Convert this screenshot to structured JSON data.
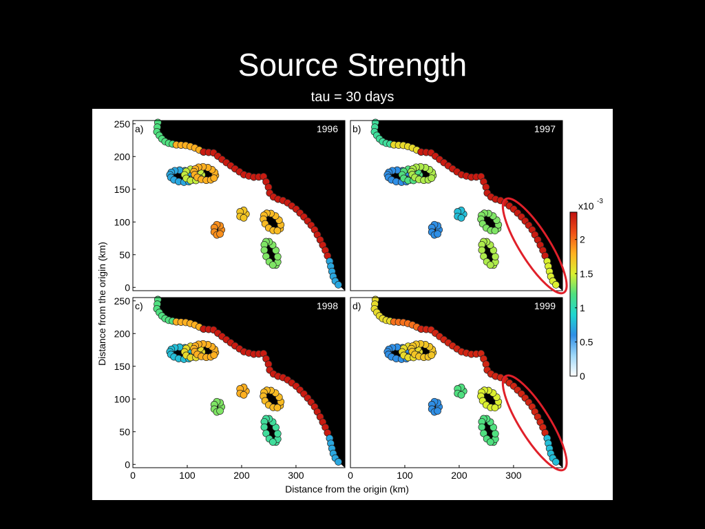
{
  "slide": {
    "title": "Source Strength",
    "subtitle": "tau = 30 days"
  },
  "chart_data": {
    "type": "scatter",
    "xlabel": "Distance from the origin (km)",
    "ylabel": "Distance from the origin (km)",
    "xlim": [
      0,
      390
    ],
    "ylim": [
      -5,
      255
    ],
    "xticks": [
      0,
      100,
      200,
      300
    ],
    "yticks": [
      0,
      50,
      100,
      150,
      200,
      250
    ],
    "colorbar": {
      "multiplier": "x10",
      "exponent": "-3",
      "range": [
        0,
        2.4
      ],
      "ticks": [
        0,
        0.5,
        1,
        1.5,
        2
      ],
      "tick_labels": [
        "0",
        "0.5",
        "1",
        "1.5",
        "2"
      ],
      "colormap": "jet",
      "colors": [
        "#ffffff",
        "#9fd8f8",
        "#2f8fe6",
        "#1fd6d0",
        "#50e080",
        "#dcf030",
        "#ffb020",
        "#f05018",
        "#c01010"
      ]
    },
    "panels": [
      {
        "label": "a)",
        "year": "1996",
        "values": {
          "coast_a": 1.2,
          "coast_b": 1.8,
          "coast_c": 2.35,
          "coast_d": 0.7,
          "island_w": 0.7,
          "island_mid": 1.45,
          "island_e": 1.8,
          "islet_small": 1.7,
          "islet_sw": 1.9,
          "islet_ne": 1.75,
          "islet_se": 1.3
        }
      },
      {
        "label": "b)",
        "year": "1997",
        "values": {
          "coast_a": 1.1,
          "coast_b": 1.6,
          "coast_c": 2.35,
          "coast_d": 1.5,
          "island_w": 0.6,
          "island_mid": 1.2,
          "island_e": 1.4,
          "islet_small": 0.8,
          "islet_sw": 0.6,
          "islet_ne": 1.3,
          "islet_se": 1.4
        }
      },
      {
        "label": "c)",
        "year": "1998",
        "values": {
          "coast_a": 1.2,
          "coast_b": 1.8,
          "coast_c": 2.35,
          "coast_d": 0.7,
          "island_w": 0.8,
          "island_mid": 1.6,
          "island_e": 1.8,
          "islet_small": 1.8,
          "islet_sw": 1.3,
          "islet_ne": 1.75,
          "islet_se": 1.1
        }
      },
      {
        "label": "d)",
        "year": "1999",
        "values": {
          "coast_a": 1.6,
          "coast_b": 2.0,
          "coast_c": 2.3,
          "coast_d": 0.8,
          "island_w": 0.6,
          "island_mid": 1.6,
          "island_e": 1.7,
          "islet_small": 1.2,
          "islet_sw": 0.6,
          "islet_ne": 1.5,
          "islet_se": 1.2
        }
      }
    ]
  }
}
